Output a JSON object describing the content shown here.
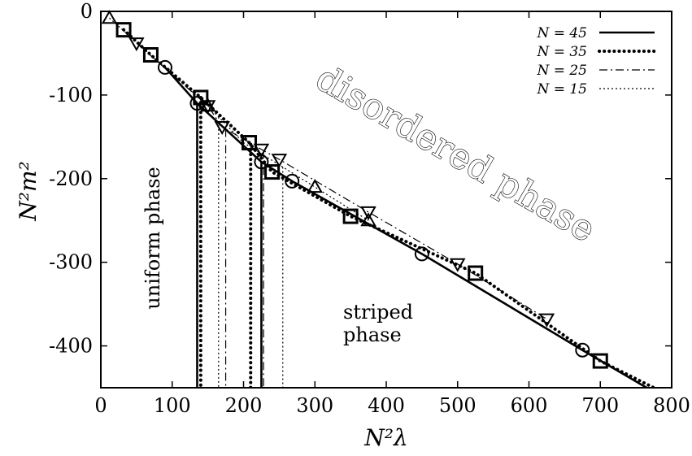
{
  "chart_data": {
    "type": "line",
    "xlabel": "N²λ",
    "ylabel": "N²m²",
    "xlim": [
      0,
      800
    ],
    "ylim": [
      -450,
      0
    ],
    "x_ticks": [
      "0",
      "100",
      "200",
      "300",
      "400",
      "500",
      "600",
      "700",
      "800"
    ],
    "y_ticks": [
      "0",
      "-100",
      "-200",
      "-300",
      "-400"
    ],
    "legend_position": "top-right",
    "grid": false,
    "series": [
      {
        "name": "N = 45",
        "line_style": "solid",
        "marker": "circle",
        "x": [
          90,
          135,
          225,
          268,
          450,
          675,
          765
        ],
        "y": [
          -67,
          -110,
          -180,
          -203,
          -290,
          -405,
          -450
        ],
        "markers_x": [
          90,
          135,
          225,
          268,
          450,
          675
        ],
        "markers_y": [
          -67,
          -110,
          -180,
          -203,
          -290,
          -405
        ],
        "transition_x": [
          135,
          225
        ]
      },
      {
        "name": "N = 35",
        "line_style": "dotted-thick",
        "marker": "square",
        "x": [
          32,
          70,
          140,
          208,
          240,
          350,
          525,
          700,
          775
        ],
        "y": [
          -22,
          -52,
          -103,
          -157,
          -192,
          -245,
          -313,
          -418,
          -450
        ],
        "markers_x": [
          32,
          70,
          140,
          208,
          240,
          350,
          525,
          700
        ],
        "markers_y": [
          -22,
          -52,
          -103,
          -157,
          -192,
          -245,
          -313,
          -418
        ],
        "transition_x": [
          140,
          210
        ]
      },
      {
        "name": "N = 25",
        "line_style": "dash-dot",
        "marker": "triangle-down",
        "x": [
          50,
          150,
          170,
          225,
          250,
          375,
          500,
          625
        ],
        "y": [
          -38,
          -113,
          -138,
          -165,
          -177,
          -240,
          -302,
          -368
        ],
        "markers_x": [
          50,
          150,
          170,
          225,
          250,
          375,
          500,
          625
        ],
        "markers_y": [
          -38,
          -113,
          -138,
          -165,
          -177,
          -240,
          -302,
          -368
        ],
        "transition_x": [
          175,
          228
        ]
      },
      {
        "name": "N = 15",
        "line_style": "dotted-thin",
        "marker": "triangle-up",
        "x": [
          12,
          150,
          200,
          300,
          375
        ],
        "y": [
          -8,
          -113,
          -157,
          -210,
          -250
        ],
        "markers_x": [
          12,
          150,
          300,
          375
        ],
        "markers_y": [
          -8,
          -113,
          -210,
          -250
        ],
        "transition_x": [
          165,
          255
        ]
      }
    ],
    "annotations": {
      "uniform": "uniform phase",
      "disordered": "disordered phase",
      "striped_line1": "striped",
      "striped_line2": "phase"
    }
  }
}
